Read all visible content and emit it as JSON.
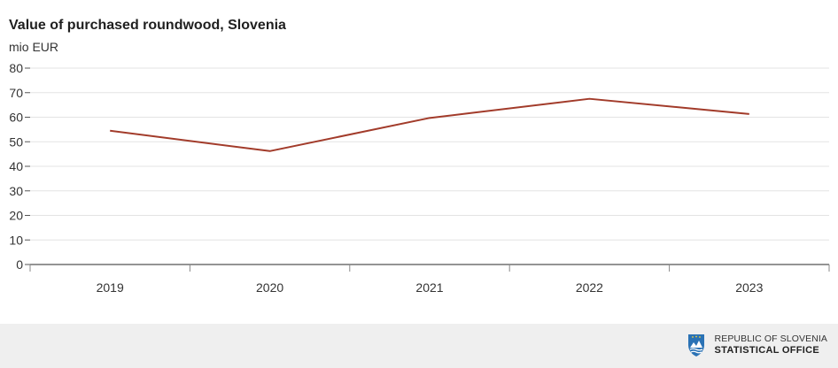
{
  "chart_data": {
    "type": "line",
    "title": "Value of purchased roundwood, Slovenia",
    "ylabel": "mio EUR",
    "xlabel": "",
    "categories": [
      "2019",
      "2020",
      "2021",
      "2022",
      "2023"
    ],
    "series": [
      {
        "values": [
          54.5,
          46.2,
          59.7,
          67.5,
          61.3
        ]
      }
    ],
    "ylim": [
      0,
      80
    ],
    "yticks": [
      0,
      10,
      20,
      30,
      40,
      50,
      60,
      70,
      80
    ],
    "grid": true,
    "legend": "none",
    "line_color": "#a23b2a"
  },
  "footer": {
    "line1": "REPUBLIC OF SLOVENIA",
    "line2": "STATISTICAL OFFICE",
    "logo_icon": "coat-of-arms-icon"
  }
}
